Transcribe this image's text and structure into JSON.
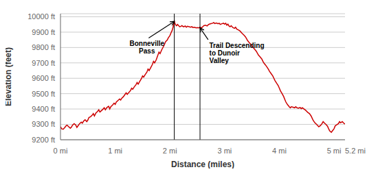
{
  "chart_data": {
    "type": "line",
    "xlabel": "Distance (miles)",
    "ylabel": "Elevation (feet)",
    "color": "#cc0000",
    "grid": "y",
    "xlim": [
      0,
      5.2
    ],
    "ylim": [
      9200,
      10020
    ],
    "xticks": [
      {
        "value": 0,
        "label": "0 mi"
      },
      {
        "value": 1,
        "label": "1 mi"
      },
      {
        "value": 2,
        "label": "2 mi"
      },
      {
        "value": 3,
        "label": "3 mi"
      },
      {
        "value": 4,
        "label": "4 mi"
      },
      {
        "value": 5,
        "label": "5 mi"
      },
      {
        "value": 5.2,
        "label": "5.2 mi"
      }
    ],
    "yticks": [
      {
        "value": 9200,
        "label": "9200 ft"
      },
      {
        "value": 9300,
        "label": "9300 ft"
      },
      {
        "value": 9400,
        "label": "9400 ft"
      },
      {
        "value": 9500,
        "label": "9500 ft"
      },
      {
        "value": 9600,
        "label": "9600 ft"
      },
      {
        "value": 9700,
        "label": "9700 ft"
      },
      {
        "value": 9800,
        "label": "9800 ft"
      },
      {
        "value": 9900,
        "label": "9900 ft"
      },
      {
        "value": 10000,
        "label": "10000 ft"
      }
    ],
    "vlines": [
      2.08,
      2.55
    ],
    "annotations": [
      {
        "text": "Bonneville\nPass",
        "xy": [
          2.08,
          9970
        ],
        "xytext": [
          1.58,
          9855
        ]
      },
      {
        "text": "Trail Descending\nto Dunoir\nValley",
        "xy": [
          2.55,
          9928
        ],
        "xytext": [
          2.72,
          9840
        ]
      }
    ],
    "x": [
      0.0,
      0.02,
      0.05,
      0.08,
      0.1,
      0.12,
      0.15,
      0.18,
      0.2,
      0.22,
      0.25,
      0.28,
      0.3,
      0.32,
      0.35,
      0.38,
      0.4,
      0.42,
      0.45,
      0.48,
      0.5,
      0.52,
      0.55,
      0.58,
      0.6,
      0.62,
      0.65,
      0.68,
      0.7,
      0.72,
      0.75,
      0.78,
      0.8,
      0.82,
      0.85,
      0.88,
      0.9,
      0.92,
      0.95,
      0.98,
      1.0,
      1.02,
      1.05,
      1.08,
      1.1,
      1.12,
      1.15,
      1.18,
      1.2,
      1.22,
      1.25,
      1.28,
      1.3,
      1.32,
      1.35,
      1.38,
      1.4,
      1.42,
      1.45,
      1.48,
      1.5,
      1.52,
      1.55,
      1.58,
      1.6,
      1.62,
      1.65,
      1.68,
      1.7,
      1.72,
      1.75,
      1.78,
      1.8,
      1.82,
      1.85,
      1.88,
      1.9,
      1.92,
      1.95,
      1.97,
      2.0,
      2.02,
      2.04,
      2.06,
      2.07,
      2.08,
      2.09,
      2.1,
      2.12,
      2.14,
      2.16,
      2.18,
      2.2,
      2.22,
      2.25,
      2.28,
      2.3,
      2.32,
      2.35,
      2.38,
      2.4,
      2.42,
      2.45,
      2.48,
      2.5,
      2.52,
      2.55,
      2.58,
      2.6,
      2.62,
      2.65,
      2.68,
      2.7,
      2.72,
      2.75,
      2.78,
      2.8,
      2.82,
      2.85,
      2.88,
      2.9,
      2.92,
      2.95,
      2.98,
      3.0,
      3.02,
      3.04,
      3.06,
      3.08,
      3.1,
      3.12,
      3.15,
      3.18,
      3.2,
      3.22,
      3.25,
      3.28,
      3.3,
      3.32,
      3.35,
      3.38,
      3.4,
      3.42,
      3.45,
      3.48,
      3.5,
      3.52,
      3.55,
      3.58,
      3.6,
      3.62,
      3.65,
      3.68,
      3.7,
      3.72,
      3.75,
      3.78,
      3.8,
      3.82,
      3.85,
      3.88,
      3.9,
      3.92,
      3.95,
      3.98,
      4.0,
      4.02,
      4.05,
      4.08,
      4.1,
      4.12,
      4.15,
      4.18,
      4.2,
      4.22,
      4.25,
      4.28,
      4.3,
      4.32,
      4.35,
      4.38,
      4.4,
      4.42,
      4.45,
      4.48,
      4.5,
      4.52,
      4.55,
      4.58,
      4.6,
      4.62,
      4.65,
      4.68,
      4.7,
      4.72,
      4.75,
      4.78,
      4.8,
      4.82,
      4.85,
      4.88,
      4.9,
      4.92,
      4.95,
      4.97,
      5.0,
      5.02,
      5.05,
      5.08,
      5.1,
      5.12,
      5.15,
      5.17,
      5.2
    ],
    "values": [
      9285,
      9272,
      9268,
      9280,
      9290,
      9295,
      9285,
      9275,
      9282,
      9295,
      9305,
      9295,
      9280,
      9290,
      9305,
      9315,
      9308,
      9320,
      9330,
      9318,
      9328,
      9345,
      9350,
      9360,
      9370,
      9355,
      9375,
      9385,
      9395,
      9380,
      9390,
      9400,
      9408,
      9395,
      9410,
      9418,
      9400,
      9415,
      9425,
      9438,
      9430,
      9445,
      9455,
      9465,
      9458,
      9470,
      9480,
      9495,
      9505,
      9495,
      9508,
      9520,
      9535,
      9528,
      9545,
      9558,
      9572,
      9562,
      9580,
      9598,
      9615,
      9608,
      9625,
      9640,
      9660,
      9650,
      9670,
      9690,
      9710,
      9700,
      9720,
      9750,
      9770,
      9760,
      9785,
      9805,
      9820,
      9838,
      9848,
      9862,
      9878,
      9895,
      9910,
      9935,
      9958,
      9972,
      9960,
      9950,
      9942,
      9950,
      9942,
      9935,
      9938,
      9942,
      9935,
      9940,
      9932,
      9938,
      9935,
      9932,
      9936,
      9930,
      9932,
      9928,
      9930,
      9928,
      9932,
      9928,
      9935,
      9942,
      9945,
      9940,
      9948,
      9952,
      9955,
      9958,
      9962,
      9956,
      9960,
      9955,
      9958,
      9950,
      9955,
      9958,
      9952,
      9958,
      9945,
      9952,
      9940,
      9935,
      9942,
      9930,
      9925,
      9932,
      9920,
      9915,
      9908,
      9900,
      9892,
      9882,
      9870,
      9858,
      9845,
      9832,
      9820,
      9808,
      9800,
      9788,
      9775,
      9762,
      9750,
      9738,
      9725,
      9710,
      9698,
      9685,
      9670,
      9658,
      9645,
      9630,
      9615,
      9600,
      9585,
      9568,
      9552,
      9535,
      9518,
      9500,
      9480,
      9462,
      9445,
      9428,
      9415,
      9408,
      9415,
      9412,
      9408,
      9415,
      9408,
      9405,
      9410,
      9402,
      9408,
      9400,
      9392,
      9385,
      9378,
      9370,
      9355,
      9340,
      9325,
      9310,
      9300,
      9292,
      9285,
      9292,
      9305,
      9318,
      9310,
      9300,
      9288,
      9272,
      9258,
      9248,
      9258,
      9272,
      9290,
      9298,
      9305,
      9318,
      9310,
      9318,
      9310,
      9302
    ]
  }
}
